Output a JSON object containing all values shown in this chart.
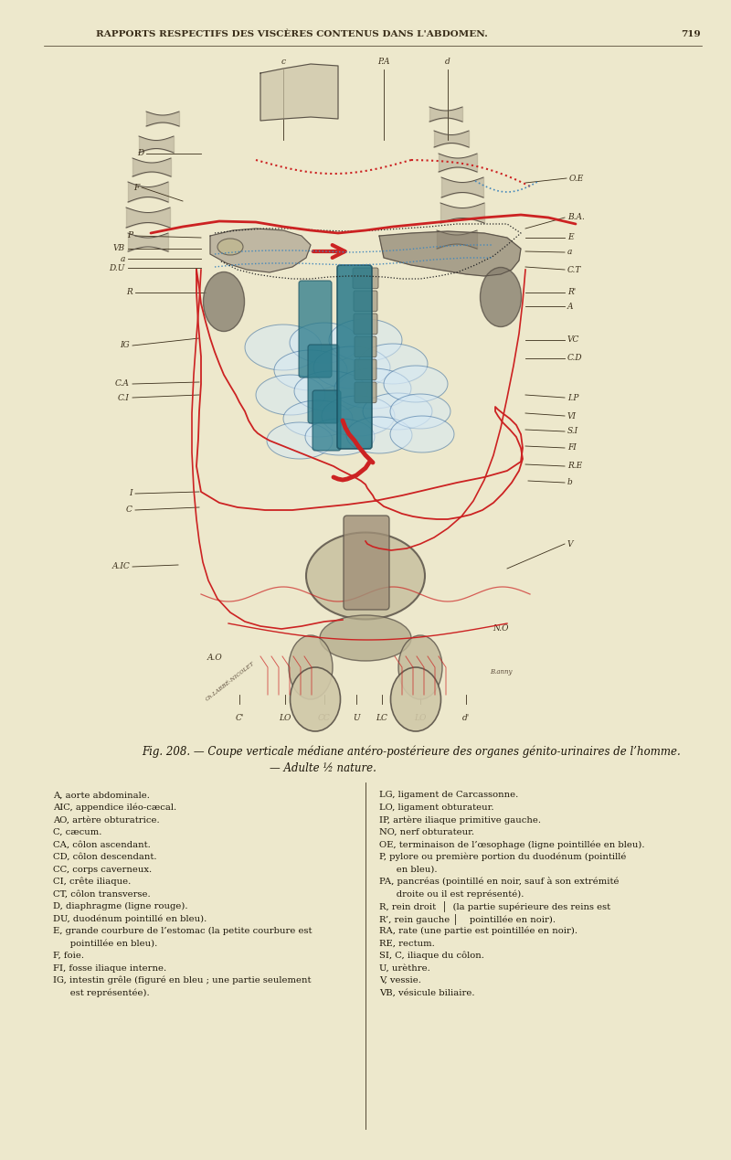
{
  "bg_color": "#ede8cc",
  "header_text": "RAPPORTS RESPECTIFS DES VISCÈRES CONTENUS DANS L'ABDOMEN.",
  "page_number": "719",
  "header_fontsize": 7.5,
  "fig_caption_line1": "Fig. 208. — Coupe verticale médiane antéro-postérieure des organes génito-urinaires de l’homme.",
  "fig_caption_line2": "— Adulte ½ nature.",
  "caption_fontsize": 8.5,
  "legend_left": [
    "A, aorte abdominale.",
    "AIC, appendice iléo-cæcal.",
    "AO, artère obturatrice.",
    "C, cæcum.",
    "CA, côlon ascendant.",
    "CD, côlon descendant.",
    "CC, corps caverneux.",
    "CI, crête iliaque.",
    "CT, côlon transverse.",
    "D, diaphragme (ligne rouge).",
    "DU, duodénum pointillé en bleu).",
    "E, grande courbure de l’estomac (la petite courbure est",
    "      pointillée en bleu).",
    "F, foie.",
    "FI, fosse iliaque interne.",
    "IG, intestin grêle (figuré en bleu ; une partie seulement",
    "      est représentée)."
  ],
  "legend_right": [
    "LG, ligament de Carcassonne.",
    "LO, ligament obturateur.",
    "IP, artère iliaque primitive gauche.",
    "NO, nerf obturateur.",
    "OE, terminaison de l’œsophage (ligne pointillée en bleu).",
    "P, pylore ou première portion du duodénum (pointillé",
    "      en bleu).",
    "PA, pancréas (pointillé en noir, sauf à son extrémité",
    "      droite ou il est représenté).",
    "R, rein droit  │  (la partie supérieure des reins est",
    "R’, rein gauche │    pointillée en noir).",
    "RA, rate (une partie est pointillée en noir).",
    "RE, rectum.",
    "SI, C, iliaque du côlon.",
    "U, urèthre.",
    "V, vessie.",
    "VB, vésicule biliaire."
  ],
  "legend_fontsize": 7.2,
  "lc": "#3a2e1a",
  "red": "#cc2222",
  "blue": "#4488bb",
  "darkblue": "#336688",
  "teal": "#2a7a8a",
  "gray_dark": "#5a5248",
  "gray_mid": "#8a8070",
  "gray_light": "#b0a890",
  "bone": "#ccc4a8",
  "brown": "#8a6030"
}
